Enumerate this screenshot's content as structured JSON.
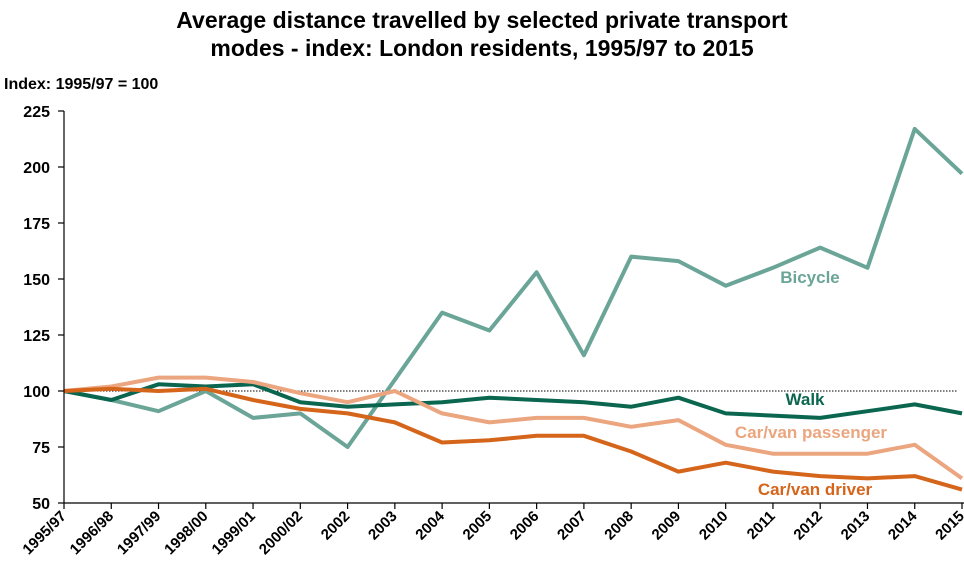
{
  "title_line1": "Average distance travelled by selected private transport",
  "title_line2": "modes - index: London residents, 1995/97 to 2015",
  "unit_label": "Index: 1995/97 = 100",
  "chart_data": {
    "type": "line",
    "title": "Average distance travelled by selected private transport modes - index: London residents, 1995/97 to 2015",
    "ylabel": "Index: 1995/97 = 100",
    "xlabel": "",
    "x": [
      "1995/97",
      "1996/98",
      "1997/99",
      "1998/00",
      "1999/01",
      "2000/02",
      "2002",
      "2003",
      "2004",
      "2005",
      "2006",
      "2007",
      "2008",
      "2009",
      "2010",
      "2011",
      "2012",
      "2013",
      "2014",
      "2015"
    ],
    "ylim": [
      50,
      225
    ],
    "yticks": [
      50,
      75,
      100,
      125,
      150,
      175,
      200,
      225
    ],
    "reference_line": 100,
    "grid": false,
    "legend": "inline labels",
    "series": [
      {
        "name": "Bicycle",
        "color": "#6aa597",
        "values": [
          100,
          96,
          91,
          100,
          88,
          90,
          75,
          105,
          135,
          127,
          153,
          116,
          160,
          158,
          147,
          155,
          164,
          155,
          217,
          197
        ]
      },
      {
        "name": "Walk",
        "color": "#0b6650",
        "values": [
          100,
          96,
          103,
          102,
          103,
          95,
          93,
          94,
          95,
          97,
          96,
          95,
          93,
          97,
          90,
          89,
          88,
          91,
          94,
          90
        ]
      },
      {
        "name": "Car/van passenger",
        "color": "#eba57f",
        "values": [
          100,
          102,
          106,
          106,
          104,
          99,
          95,
          100,
          90,
          86,
          88,
          88,
          84,
          87,
          76,
          72,
          72,
          72,
          76,
          61
        ]
      },
      {
        "name": "Car/van driver",
        "color": "#d4651b",
        "values": [
          100,
          101,
          100,
          101,
          96,
          92,
          90,
          86,
          77,
          78,
          80,
          80,
          73,
          64,
          68,
          64,
          62,
          61,
          62,
          56
        ]
      }
    ]
  }
}
